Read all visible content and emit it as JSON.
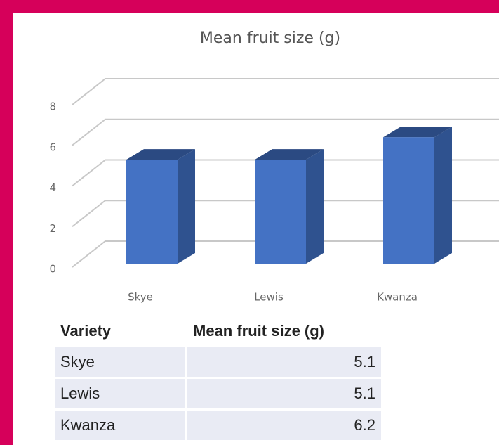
{
  "chart_data": {
    "type": "bar",
    "title": "Mean fruit size (g)",
    "categories": [
      "Skye",
      "Lewis",
      "Kwanza"
    ],
    "values": [
      5.1,
      5.1,
      6.2
    ],
    "color": "#4472c4",
    "ylim": [
      0,
      8
    ],
    "yticks": [
      0,
      2,
      4,
      6,
      8
    ],
    "grid": true
  },
  "table": {
    "header": [
      "Variety",
      "Mean fruit size (g)"
    ],
    "rows": [
      [
        "Skye",
        "5.1"
      ],
      [
        "Lewis",
        "5.1"
      ],
      [
        "Kwanza",
        "6.2"
      ]
    ]
  }
}
